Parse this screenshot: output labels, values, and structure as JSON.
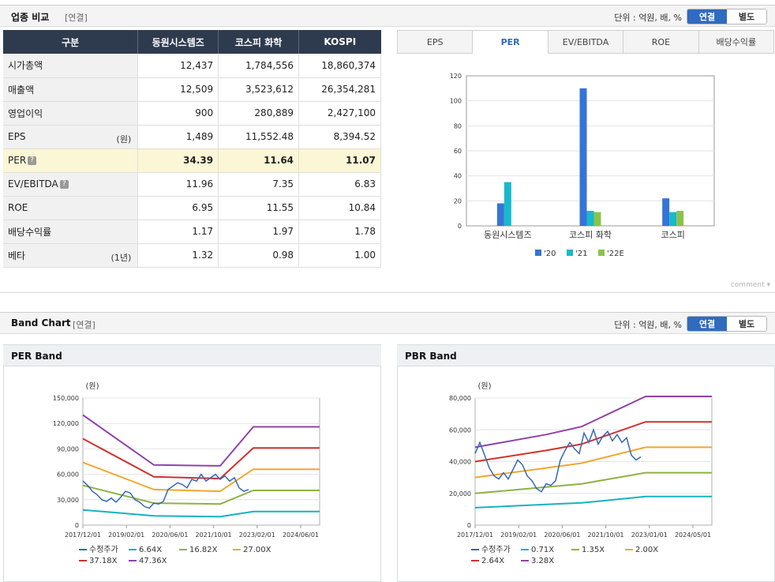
{
  "industry": {
    "title": "업종 비교",
    "sub": "[연결]",
    "unit": "단위 : 억원, 배, %",
    "btn_consolidated": "연결",
    "btn_separate": "별도"
  },
  "table": {
    "headers": [
      "구분",
      "동원시스템즈",
      "코스피 화학",
      "KOSPI"
    ],
    "rows": [
      {
        "label": "시가총액",
        "note": "",
        "values": [
          "12,437",
          "1,784,556",
          "18,860,374"
        ]
      },
      {
        "label": "매출액",
        "note": "",
        "values": [
          "12,509",
          "3,523,612",
          "26,354,281"
        ]
      },
      {
        "label": "영업이익",
        "note": "",
        "values": [
          "900",
          "280,889",
          "2,427,100"
        ]
      },
      {
        "label": "EPS",
        "note": "(원)",
        "values": [
          "1,489",
          "11,552.48",
          "8,394.52"
        ]
      },
      {
        "label": "PER",
        "note": "",
        "values": [
          "34.39",
          "11.64",
          "11.07"
        ]
      },
      {
        "label": "EV/EBITDA",
        "note": "",
        "values": [
          "11.96",
          "7.35",
          "6.83"
        ]
      },
      {
        "label": "ROE",
        "note": "",
        "values": [
          "6.95",
          "11.55",
          "10.84"
        ]
      },
      {
        "label": "배당수익률",
        "note": "",
        "values": [
          "1.17",
          "1.97",
          "1.78"
        ]
      },
      {
        "label": "베타",
        "note": "(1년)",
        "values": [
          "1.32",
          "0.98",
          "1.00"
        ]
      }
    ]
  },
  "tabs": [
    "EPS",
    "PER",
    "EV/EBITDA",
    "ROE",
    "배당수익률"
  ],
  "comment": "comment",
  "per_chart": {
    "chart_data": {
      "type": "bar",
      "categories": [
        "동원시스템즈",
        "코스피 화학",
        "코스피"
      ],
      "series": [
        {
          "name": "'20",
          "values": [
            18,
            110,
            22
          ],
          "color": "#3574d6"
        },
        {
          "name": "'21",
          "values": [
            35,
            12,
            11
          ],
          "color": "#17b9cc"
        },
        {
          "name": "'22E",
          "values": [
            null,
            11,
            12
          ],
          "color": "#8bc34a"
        }
      ],
      "ylim": [
        0,
        120
      ],
      "yticks": [
        "0",
        "20",
        "40",
        "60",
        "80",
        "100",
        "120"
      ],
      "title": "",
      "xlabel": "",
      "ylabel": ""
    }
  },
  "band": {
    "title": "Band Chart",
    "sub": "[연결]",
    "unit": "단위 : 억원, 배, %",
    "btn_consolidated": "연결",
    "btn_separate": "별도"
  },
  "per_band": {
    "title": "PER Band",
    "unit_label": "(원)",
    "chart_data": {
      "type": "line",
      "x_ticks": [
        "2017/12/01",
        "2019/02/01",
        "2020/06/01",
        "2021/10/01",
        "2023/02/01",
        "2024/06/01"
      ],
      "yticks": [
        "0",
        "30,000",
        "60,000",
        "90,000",
        "120,000",
        "150,000"
      ],
      "ylim": [
        0,
        150000
      ],
      "xlim": [
        0,
        100
      ],
      "series": [
        {
          "name": "수정주가",
          "color": "#3467b8",
          "x": [
            0,
            2,
            4,
            6,
            8,
            10,
            12,
            14,
            16,
            18,
            20,
            22,
            24,
            26,
            28,
            30,
            32,
            34,
            36,
            38,
            40,
            42,
            44,
            46,
            48,
            50,
            52,
            54,
            56,
            58,
            60,
            62,
            64,
            66,
            68,
            70
          ],
          "y": [
            52000,
            47000,
            40000,
            36000,
            30000,
            28000,
            32000,
            27000,
            33000,
            40000,
            38000,
            30000,
            27000,
            22000,
            20000,
            26000,
            25000,
            28000,
            42000,
            46000,
            50000,
            48000,
            44000,
            54000,
            52000,
            60000,
            52000,
            56000,
            60000,
            54000,
            58000,
            52000,
            56000,
            44000,
            40000,
            42000
          ]
        },
        {
          "name": "6.64X",
          "color": "#16b2c0",
          "x": [
            0,
            30,
            58,
            72,
            100
          ],
          "y": [
            18000,
            11000,
            10000,
            16000,
            16000
          ]
        },
        {
          "name": "16.82X",
          "color": "#8db245",
          "x": [
            0,
            30,
            58,
            72,
            100
          ],
          "y": [
            47000,
            26000,
            25000,
            41000,
            41000
          ]
        },
        {
          "name": "27.00X",
          "color": "#f0a830",
          "x": [
            0,
            30,
            58,
            72,
            100
          ],
          "y": [
            74000,
            42000,
            40000,
            66000,
            66000
          ]
        },
        {
          "name": "37.18X",
          "color": "#d0322e",
          "x": [
            0,
            30,
            58,
            72,
            100
          ],
          "y": [
            102000,
            57000,
            55000,
            91000,
            91000
          ]
        },
        {
          "name": "47.36X",
          "color": "#8e44a8",
          "x": [
            0,
            30,
            58,
            72,
            100
          ],
          "y": [
            130000,
            71000,
            70000,
            116000,
            116000
          ]
        }
      ]
    }
  },
  "pbr_band": {
    "title": "PBR Band",
    "unit_label": "(원)",
    "chart_data": {
      "type": "line",
      "x_ticks": [
        "2017/12/01",
        "2019/02/01",
        "2020/06/01",
        "2021/10/01",
        "2023/01/01",
        "2024/05/01"
      ],
      "yticks": [
        "0",
        "20,000",
        "40,000",
        "60,000",
        "80,000"
      ],
      "ylim": [
        0,
        80000
      ],
      "xlim": [
        0,
        100
      ],
      "series": [
        {
          "name": "수정주가",
          "color": "#3467b8",
          "x": [
            0,
            2,
            4,
            6,
            8,
            10,
            12,
            14,
            16,
            18,
            20,
            22,
            24,
            26,
            28,
            30,
            32,
            34,
            36,
            38,
            40,
            42,
            44,
            46,
            48,
            50,
            52,
            54,
            56,
            58,
            60,
            62,
            64,
            66,
            68,
            70
          ],
          "y": [
            45000,
            52000,
            44000,
            36000,
            31000,
            29000,
            33000,
            29000,
            35000,
            41000,
            38000,
            31000,
            28000,
            23000,
            21000,
            26000,
            25000,
            28000,
            41000,
            47000,
            52000,
            48000,
            45000,
            58000,
            52000,
            60000,
            51000,
            56000,
            59000,
            53000,
            57000,
            52000,
            55000,
            44000,
            41000,
            43000
          ]
        },
        {
          "name": "0.71X",
          "color": "#16b2c0",
          "x": [
            0,
            30,
            45,
            72,
            100
          ],
          "y": [
            11000,
            13000,
            14000,
            18000,
            18000
          ]
        },
        {
          "name": "1.35X",
          "color": "#8db245",
          "x": [
            0,
            30,
            45,
            72,
            100
          ],
          "y": [
            20000,
            24000,
            26000,
            33000,
            33000
          ]
        },
        {
          "name": "2.00X",
          "color": "#f0a830",
          "x": [
            0,
            30,
            45,
            72,
            100
          ],
          "y": [
            30000,
            36000,
            39000,
            49000,
            49000
          ]
        },
        {
          "name": "2.64X",
          "color": "#d0322e",
          "x": [
            0,
            30,
            45,
            72,
            100
          ],
          "y": [
            40000,
            47000,
            51000,
            65000,
            65000
          ]
        },
        {
          "name": "3.28X",
          "color": "#8e44a8",
          "x": [
            0,
            30,
            45,
            72,
            100
          ],
          "y": [
            49000,
            57000,
            62000,
            81000,
            81000
          ]
        }
      ]
    }
  }
}
